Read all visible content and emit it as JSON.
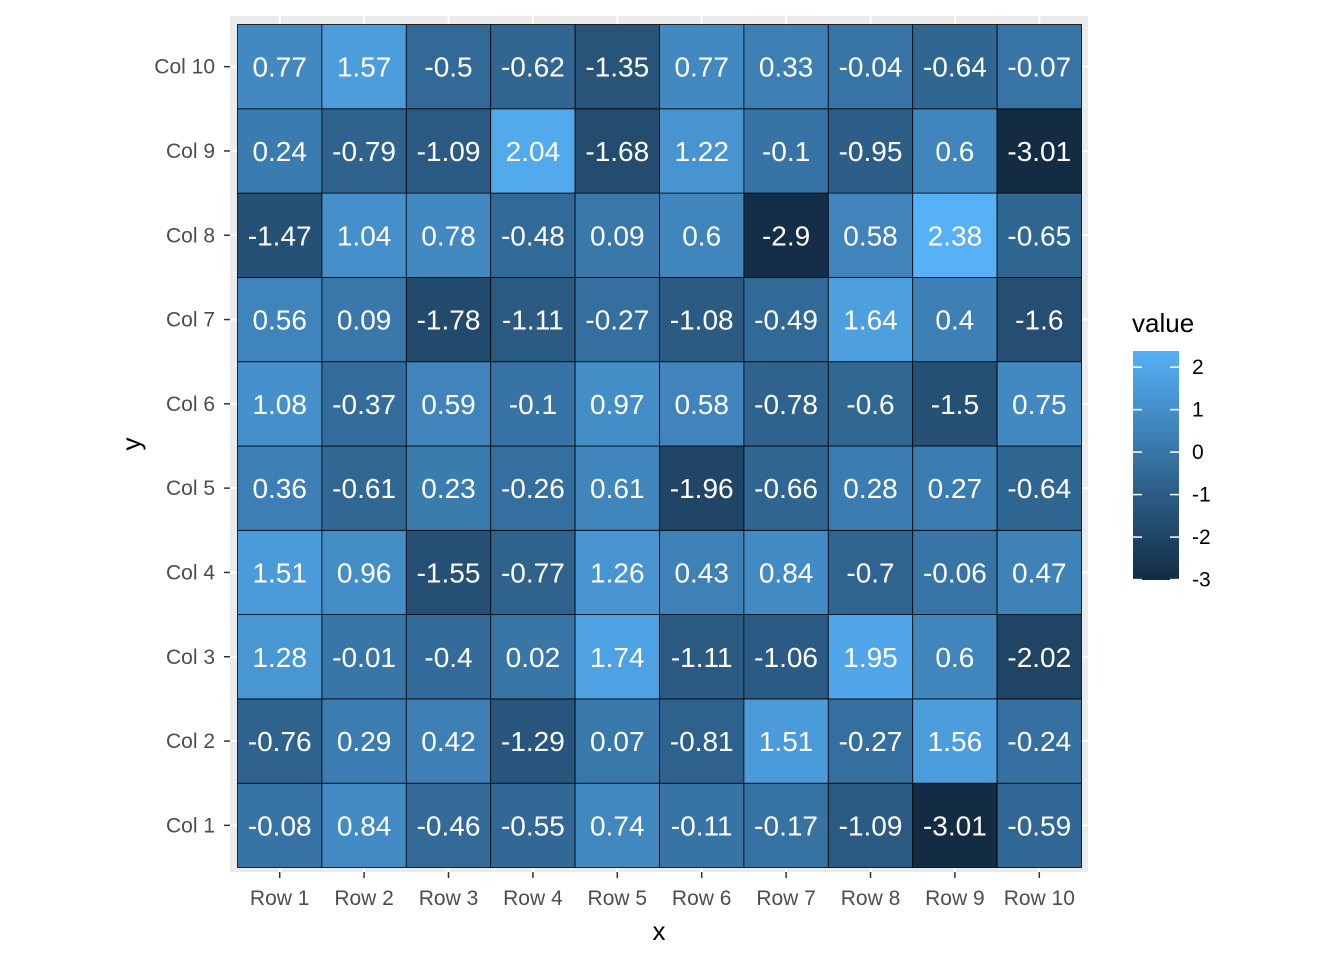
{
  "chart_data": {
    "type": "heatmap",
    "xlabel": "x",
    "ylabel": "y",
    "x_categories": [
      "Row 1",
      "Row 2",
      "Row 3",
      "Row 4",
      "Row 5",
      "Row 6",
      "Row 7",
      "Row 8",
      "Row 9",
      "Row 10"
    ],
    "y_categories": [
      "Col 1",
      "Col 2",
      "Col 3",
      "Col 4",
      "Col 5",
      "Col 6",
      "Col 7",
      "Col 8",
      "Col 9",
      "Col 10"
    ],
    "values": [
      [
        -0.08,
        0.84,
        -0.46,
        -0.55,
        0.74,
        -0.11,
        -0.17,
        -1.09,
        -3.01,
        -0.59
      ],
      [
        -0.76,
        0.29,
        0.42,
        -1.29,
        0.07,
        -0.81,
        1.51,
        -0.27,
        1.56,
        -0.24
      ],
      [
        1.28,
        -0.01,
        -0.4,
        0.02,
        1.74,
        -1.11,
        -1.06,
        1.95,
        0.6,
        -2.02
      ],
      [
        1.51,
        0.96,
        -1.55,
        -0.77,
        1.26,
        0.43,
        0.84,
        -0.7,
        -0.06,
        0.47
      ],
      [
        0.36,
        -0.61,
        0.23,
        -0.26,
        0.61,
        -1.96,
        -0.66,
        0.28,
        0.27,
        -0.64
      ],
      [
        1.08,
        -0.37,
        0.59,
        -0.1,
        0.97,
        0.58,
        -0.78,
        -0.6,
        -1.5,
        0.75
      ],
      [
        0.56,
        0.09,
        -1.78,
        -1.11,
        -0.27,
        -1.08,
        -0.49,
        1.64,
        0.4,
        -1.6
      ],
      [
        -1.47,
        1.04,
        0.78,
        -0.48,
        0.09,
        0.6,
        -2.9,
        0.58,
        2.38,
        -0.65
      ],
      [
        0.24,
        -0.79,
        -1.09,
        2.04,
        -1.68,
        1.22,
        -0.1,
        -0.95,
        0.6,
        -3.01
      ],
      [
        0.77,
        1.57,
        -0.5,
        -0.62,
        -1.35,
        0.77,
        0.33,
        -0.04,
        -0.64,
        -0.07
      ]
    ],
    "value_range": [
      -3.01,
      2.38
    ],
    "legend": {
      "title": "value",
      "position": "right",
      "ticks": [
        2,
        1,
        0,
        -1,
        -2,
        -3
      ],
      "low_color": "#132B43",
      "high_color": "#56B1F7"
    },
    "panel_background": "#EBEBEB",
    "grid": true
  }
}
